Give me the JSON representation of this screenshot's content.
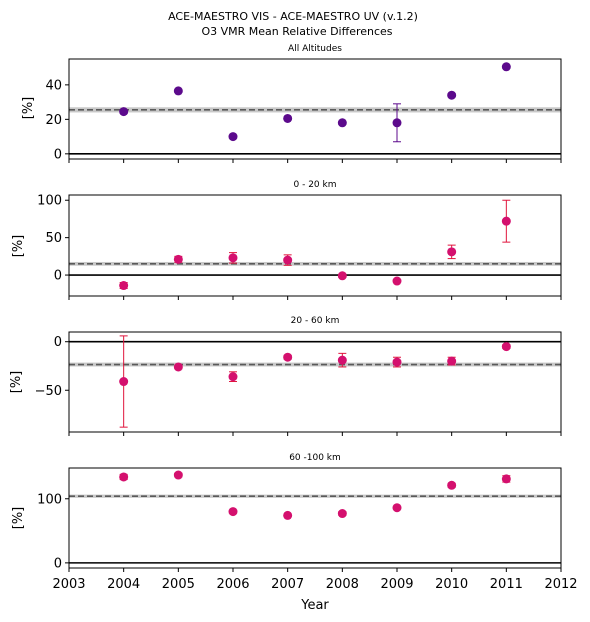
{
  "figure": {
    "title_line1": "ACE-MAESTRO VIS - ACE-MAESTRO UV (v.1.2)",
    "title_line2": "O3 VMR Mean Relative Differences",
    "xlabel": "Year",
    "x_ticks": [
      2003,
      2004,
      2005,
      2006,
      2007,
      2008,
      2009,
      2010,
      2011,
      2012
    ]
  },
  "chart_data": [
    {
      "type": "scatter",
      "title": "All Altitudes",
      "ylabel": "[%]",
      "xlim": [
        2003,
        2012
      ],
      "ylim": [
        -3,
        55
      ],
      "y_ticks": [
        0,
        20,
        40
      ],
      "marker_color": "#5c0a8c",
      "errorbar_color": "#5c0a8c",
      "mean_line": 25.5,
      "mean_band": [
        24,
        27
      ],
      "zero_line": 0,
      "points": [
        {
          "x": 2004,
          "y": 24.5,
          "err": 0.8
        },
        {
          "x": 2005,
          "y": 36.5,
          "err": 0.8
        },
        {
          "x": 2006,
          "y": 10,
          "err": 0.8
        },
        {
          "x": 2007,
          "y": 20.5,
          "err": 0.8
        },
        {
          "x": 2008,
          "y": 18,
          "err": 0.8
        },
        {
          "x": 2009,
          "y": 18,
          "err": 11
        },
        {
          "x": 2010,
          "y": 34,
          "err": 0.8
        },
        {
          "x": 2011,
          "y": 50.5,
          "err": 0.8
        }
      ]
    },
    {
      "type": "scatter",
      "title": "0 - 20 km",
      "ylabel": "[%]",
      "xlim": [
        2003,
        2012
      ],
      "ylim": [
        -28,
        107
      ],
      "y_ticks": [
        0,
        50,
        100
      ],
      "marker_color": "#d4106e",
      "errorbar_color": "#e0143c",
      "mean_line": 15,
      "mean_band": [
        12.5,
        17.5
      ],
      "zero_line": 0,
      "points": [
        {
          "x": 2004,
          "y": -14,
          "err": 4
        },
        {
          "x": 2005,
          "y": 21,
          "err": 4
        },
        {
          "x": 2006,
          "y": 23,
          "err": 7
        },
        {
          "x": 2007,
          "y": 20,
          "err": 7
        },
        {
          "x": 2008,
          "y": -1,
          "err": 2
        },
        {
          "x": 2009,
          "y": -8,
          "err": 2
        },
        {
          "x": 2010,
          "y": 31,
          "err": 9
        },
        {
          "x": 2011,
          "y": 72,
          "err": 28
        }
      ]
    },
    {
      "type": "scatter",
      "title": "20 - 60 km",
      "ylabel": "[%]",
      "xlim": [
        2003,
        2012
      ],
      "ylim": [
        -93,
        10
      ],
      "y_ticks": [
        -50,
        0
      ],
      "marker_color": "#d4106e",
      "errorbar_color": "#e0143c",
      "mean_line": -23.5,
      "mean_band": [
        -25.5,
        -21.5
      ],
      "zero_line": 0,
      "points": [
        {
          "x": 2004,
          "y": -41,
          "err": 47
        },
        {
          "x": 2005,
          "y": -26,
          "err": 2
        },
        {
          "x": 2006,
          "y": -36,
          "err": 5
        },
        {
          "x": 2007,
          "y": -16,
          "err": 2
        },
        {
          "x": 2008,
          "y": -19,
          "err": 7
        },
        {
          "x": 2009,
          "y": -21,
          "err": 5
        },
        {
          "x": 2010,
          "y": -20,
          "err": 4
        },
        {
          "x": 2011,
          "y": -5,
          "err": 2
        }
      ]
    },
    {
      "type": "scatter",
      "title": "60 -100 km",
      "ylabel": "[%]",
      "xlim": [
        2003,
        2012
      ],
      "ylim": [
        -8,
        148
      ],
      "y_ticks": [
        0,
        100
      ],
      "marker_color": "#d4106e",
      "errorbar_color": "#e0143c",
      "mean_line": 104,
      "mean_band": [
        101.5,
        106.5
      ],
      "zero_line": 0,
      "points": [
        {
          "x": 2004,
          "y": 134,
          "err": 4
        },
        {
          "x": 2005,
          "y": 137,
          "err": 3
        },
        {
          "x": 2006,
          "y": 80,
          "err": 2
        },
        {
          "x": 2007,
          "y": 74,
          "err": 2
        },
        {
          "x": 2008,
          "y": 77,
          "err": 3
        },
        {
          "x": 2009,
          "y": 86,
          "err": 2
        },
        {
          "x": 2010,
          "y": 121,
          "err": 3
        },
        {
          "x": 2011,
          "y": 131,
          "err": 5
        }
      ]
    }
  ]
}
